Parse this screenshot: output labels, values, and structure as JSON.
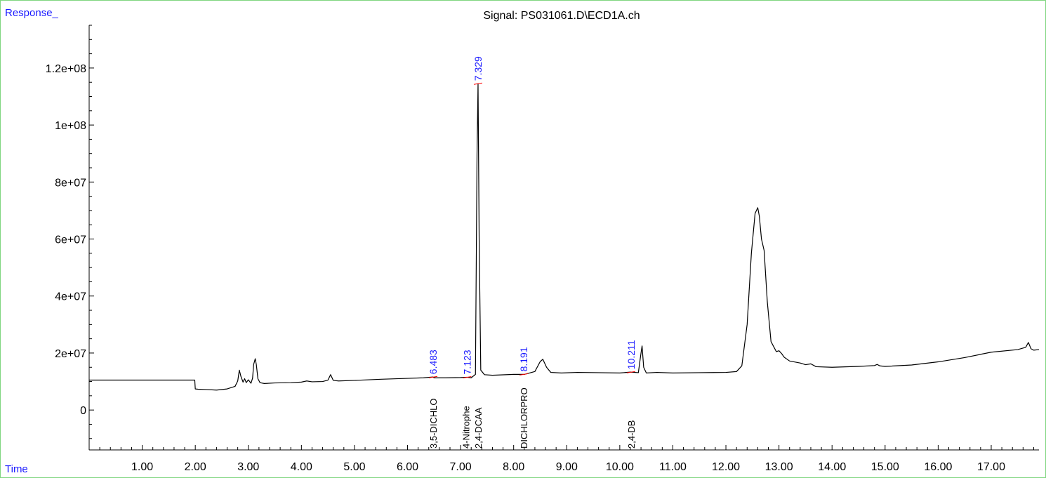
{
  "y_axis_label": "Response_",
  "x_axis_label": "Time",
  "title": "Signal: PS031061.D\\ECD1A.ch",
  "colors": {
    "axis_labels": "#1a1aff",
    "frame": "#7fd67f",
    "trace": "#000000",
    "integration": "#ff0000",
    "peak_labels": "#1a1aff"
  },
  "chart_data": {
    "type": "line",
    "title": "Signal: PS031061.D\\ECD1A.ch",
    "xlabel": "Time",
    "ylabel": "Response_",
    "xlim": [
      0,
      17.9
    ],
    "ylim": [
      -14000000,
      135000000
    ],
    "x_ticks": [
      1,
      2,
      3,
      4,
      5,
      6,
      7,
      8,
      9,
      10,
      11,
      12,
      13,
      14,
      15,
      16,
      17
    ],
    "x_tick_labels": [
      "1.00",
      "2.00",
      "3.00",
      "4.00",
      "5.00",
      "6.00",
      "7.00",
      "8.00",
      "9.00",
      "10.00",
      "11.00",
      "12.00",
      "13.00",
      "14.00",
      "15.00",
      "16.00",
      "17.00"
    ],
    "y_ticks": [
      0,
      20000000,
      40000000,
      60000000,
      80000000,
      100000000,
      120000000
    ],
    "y_tick_labels": [
      "0",
      "2e+07",
      "4e+07",
      "6e+07",
      "8e+07",
      "1e+08",
      "1.2e+08"
    ],
    "series": [
      {
        "x": [
          0,
          1.99,
          2.0,
          2.05,
          2.2,
          2.4,
          2.6,
          2.75,
          2.8,
          2.83,
          2.86,
          2.9,
          2.93,
          2.96,
          3.0,
          3.05,
          3.08,
          3.1,
          3.13,
          3.15,
          3.18,
          3.22,
          3.3,
          3.5,
          3.8,
          4.0,
          4.1,
          4.2,
          4.4,
          4.5,
          4.55,
          4.6,
          4.7,
          5.0,
          5.5,
          6.0,
          6.3,
          6.48,
          6.5,
          6.7,
          7.0,
          7.12,
          7.2,
          7.28,
          7.31,
          7.329,
          7.35,
          7.38,
          7.45,
          7.6,
          8.0,
          8.2,
          8.4,
          8.5,
          8.55,
          8.62,
          8.7,
          8.9,
          9.2,
          9.6,
          10.0,
          10.2,
          10.35,
          10.4,
          10.42,
          10.45,
          10.5,
          10.7,
          11.0,
          11.5,
          12.0,
          12.2,
          12.3,
          12.4,
          12.48,
          12.55,
          12.6,
          12.63,
          12.67,
          12.72,
          12.78,
          12.85,
          12.95,
          13.0,
          13.05,
          13.1,
          13.2,
          13.4,
          13.5,
          13.6,
          13.7,
          14.0,
          14.5,
          14.8,
          14.85,
          14.9,
          15.0,
          15.5,
          16.0,
          16.5,
          17.0,
          17.5,
          17.65,
          17.7,
          17.75,
          17.8,
          17.9
        ],
        "y": [
          10500000,
          10500000,
          7400000,
          7300000,
          7200000,
          7000000,
          7400000,
          8300000,
          10200000,
          14000000,
          11800000,
          9800000,
          11000000,
          9600000,
          10600000,
          9400000,
          11200000,
          16000000,
          18000000,
          16000000,
          11000000,
          9600000,
          9300000,
          9500000,
          9600000,
          9800000,
          10200000,
          9900000,
          10000000,
          10500000,
          12400000,
          10400000,
          10200000,
          10400000,
          10800000,
          11100000,
          11300000,
          11600000,
          11300000,
          11300000,
          11400000,
          11500000,
          11300000,
          12500000,
          90000000,
          114500000,
          60000000,
          14000000,
          12400000,
          12200000,
          12500000,
          12500000,
          13500000,
          17000000,
          17800000,
          15000000,
          13200000,
          13000000,
          13200000,
          13100000,
          13000000,
          13300000,
          13100000,
          20000000,
          22500000,
          15000000,
          13000000,
          13200000,
          13000000,
          13100000,
          13200000,
          13500000,
          15500000,
          30000000,
          55000000,
          69000000,
          71000000,
          68000000,
          60000000,
          56000000,
          38000000,
          24000000,
          20500000,
          20800000,
          19800000,
          18500000,
          17200000,
          16500000,
          15900000,
          16200000,
          15200000,
          15000000,
          15300000,
          15600000,
          16000000,
          15500000,
          15300000,
          15800000,
          16900000,
          18400000,
          20300000,
          21200000,
          22000000,
          23700000,
          21500000,
          21000000,
          21200000
        ]
      }
    ],
    "peaks": [
      {
        "rt": 6.483,
        "label": "6.483",
        "compound": "3,5-DICHLO"
      },
      {
        "rt": 7.123,
        "label": "7.123",
        "compound": "4-Nitrophe"
      },
      {
        "rt": 7.329,
        "label": "7.329",
        "compound": "2,4-DCAA"
      },
      {
        "rt": 8.191,
        "label": "8.191",
        "compound": "DICHLORPRO"
      },
      {
        "rt": 10.211,
        "label": "10.211",
        "compound": "2,4-DB"
      }
    ]
  }
}
